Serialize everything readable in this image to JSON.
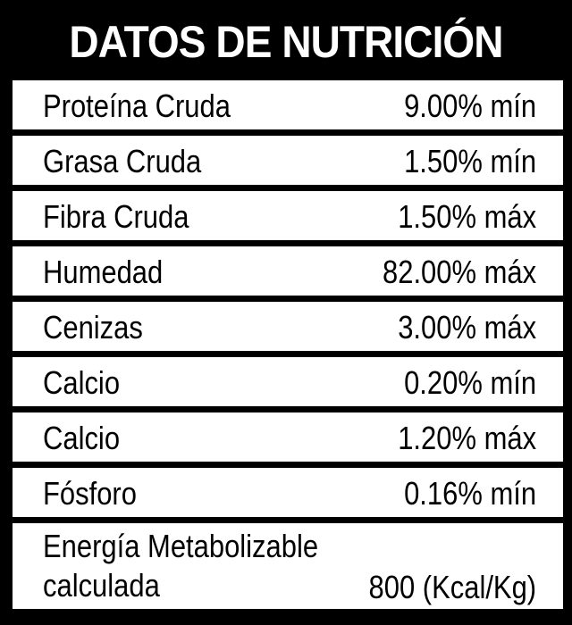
{
  "title": "DATOS DE NUTRICIÓN",
  "rows": [
    {
      "label": "Proteína Cruda",
      "value": "9.00% mín"
    },
    {
      "label": "Grasa Cruda",
      "value": "1.50% mín"
    },
    {
      "label": "Fibra Cruda",
      "value": "1.50% máx"
    },
    {
      "label": "Humedad",
      "value": "82.00% máx"
    },
    {
      "label": "Cenizas",
      "value": "3.00% máx"
    },
    {
      "label": "Calcio",
      "value": "0.20% mín"
    },
    {
      "label": "Calcio",
      "value": "1.20% máx"
    },
    {
      "label": "Fósforo",
      "value": "0.16% mín"
    }
  ],
  "energy": {
    "label_line1": "Energía Metabolizable",
    "label_line2": "calculada",
    "value": "800 (Kcal/Kg)"
  },
  "colors": {
    "background": "#000000",
    "row_background": "#ffffff",
    "text": "#000000",
    "title_text": "#ffffff"
  }
}
